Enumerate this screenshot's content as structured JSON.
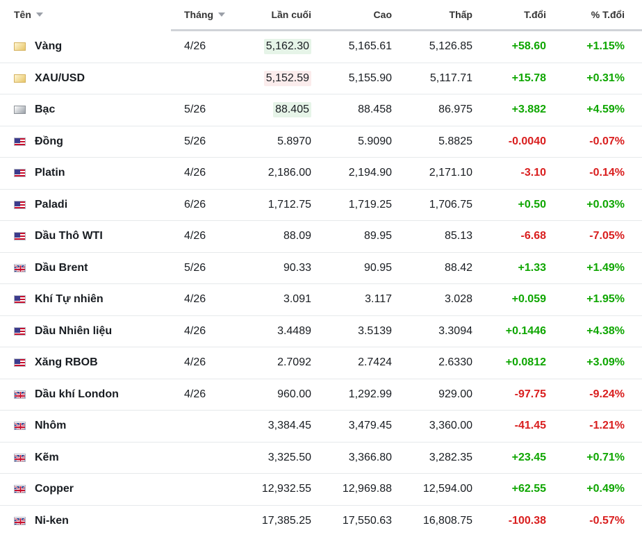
{
  "header": {
    "name": "Tên",
    "month": "Tháng",
    "last": "Lần cuối",
    "high": "Cao",
    "low": "Thấp",
    "change": "T.đổi",
    "change_pct": "% T.đổi"
  },
  "colors": {
    "up": "#0ea600",
    "down": "#d91e1e"
  },
  "rows": [
    {
      "icon": "gold-bar-icon",
      "name": "Vàng",
      "month": "4/26",
      "last": "5,162.30",
      "last_flash": "up",
      "high": "5,165.61",
      "low": "5,126.85",
      "change": "+58.60",
      "change_pct": "+1.15%",
      "dir": "up"
    },
    {
      "icon": "gold-bar-icon",
      "name": "XAU/USD",
      "month": "",
      "last": "5,152.59",
      "last_flash": "down",
      "high": "5,155.90",
      "low": "5,117.71",
      "change": "+15.78",
      "change_pct": "+0.31%",
      "dir": "up"
    },
    {
      "icon": "silver-bar-icon",
      "name": "Bạc",
      "month": "5/26",
      "last": "88.405",
      "last_flash": "up",
      "high": "88.458",
      "low": "86.975",
      "change": "+3.882",
      "change_pct": "+4.59%",
      "dir": "up"
    },
    {
      "icon": "us-flag-icon",
      "name": "Đồng",
      "month": "5/26",
      "last": "5.8970",
      "high": "5.9090",
      "low": "5.8825",
      "change": "-0.0040",
      "change_pct": "-0.07%",
      "dir": "down"
    },
    {
      "icon": "us-flag-icon",
      "name": "Platin",
      "month": "4/26",
      "last": "2,186.00",
      "high": "2,194.90",
      "low": "2,171.10",
      "change": "-3.10",
      "change_pct": "-0.14%",
      "dir": "down"
    },
    {
      "icon": "us-flag-icon",
      "name": "Paladi",
      "month": "6/26",
      "last": "1,712.75",
      "high": "1,719.25",
      "low": "1,706.75",
      "change": "+0.50",
      "change_pct": "+0.03%",
      "dir": "up"
    },
    {
      "icon": "us-flag-icon",
      "name": "Dầu Thô WTI",
      "month": "4/26",
      "last": "88.09",
      "high": "89.95",
      "low": "85.13",
      "change": "-6.68",
      "change_pct": "-7.05%",
      "dir": "down"
    },
    {
      "icon": "uk-flag-icon",
      "name": "Dầu Brent",
      "month": "5/26",
      "last": "90.33",
      "high": "90.95",
      "low": "88.42",
      "change": "+1.33",
      "change_pct": "+1.49%",
      "dir": "up"
    },
    {
      "icon": "us-flag-icon",
      "name": "Khí Tự nhiên",
      "month": "4/26",
      "last": "3.091",
      "high": "3.117",
      "low": "3.028",
      "change": "+0.059",
      "change_pct": "+1.95%",
      "dir": "up"
    },
    {
      "icon": "us-flag-icon",
      "name": "Dầu Nhiên liệu",
      "month": "4/26",
      "last": "3.4489",
      "high": "3.5139",
      "low": "3.3094",
      "change": "+0.1446",
      "change_pct": "+4.38%",
      "dir": "up"
    },
    {
      "icon": "us-flag-icon",
      "name": "Xăng RBOB",
      "month": "4/26",
      "last": "2.7092",
      "high": "2.7424",
      "low": "2.6330",
      "change": "+0.0812",
      "change_pct": "+3.09%",
      "dir": "up"
    },
    {
      "icon": "uk-flag-icon",
      "name": "Dầu khí London",
      "month": "4/26",
      "last": "960.00",
      "high": "1,292.99",
      "low": "929.00",
      "change": "-97.75",
      "change_pct": "-9.24%",
      "dir": "down"
    },
    {
      "icon": "uk-flag-icon",
      "name": "Nhôm",
      "month": "",
      "last": "3,384.45",
      "high": "3,479.45",
      "low": "3,360.00",
      "change": "-41.45",
      "change_pct": "-1.21%",
      "dir": "down"
    },
    {
      "icon": "uk-flag-icon",
      "name": "Kẽm",
      "month": "",
      "last": "3,325.50",
      "high": "3,366.80",
      "low": "3,282.35",
      "change": "+23.45",
      "change_pct": "+0.71%",
      "dir": "up"
    },
    {
      "icon": "uk-flag-icon",
      "name": "Copper",
      "month": "",
      "last": "12,932.55",
      "high": "12,969.88",
      "low": "12,594.00",
      "change": "+62.55",
      "change_pct": "+0.49%",
      "dir": "up"
    },
    {
      "icon": "uk-flag-icon",
      "name": "Ni-ken",
      "month": "",
      "last": "17,385.25",
      "high": "17,550.63",
      "low": "16,808.75",
      "change": "-100.38",
      "change_pct": "-0.57%",
      "dir": "down"
    }
  ]
}
